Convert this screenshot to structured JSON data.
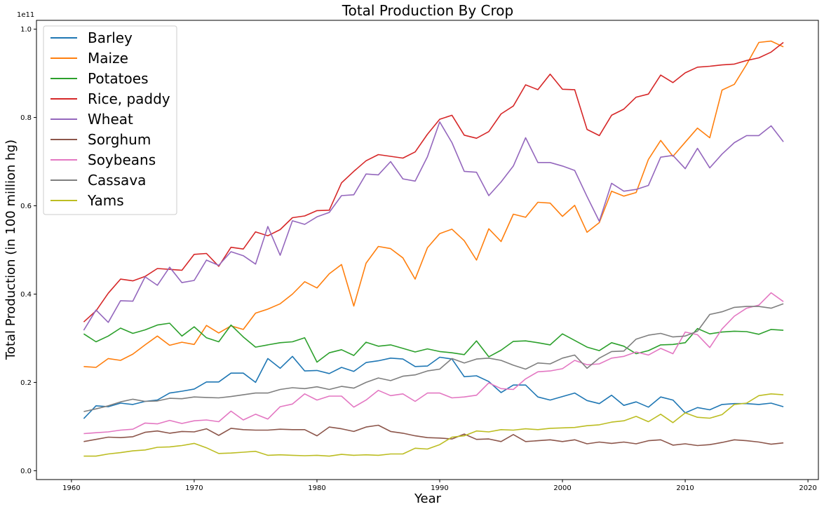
{
  "chart_data": {
    "type": "line",
    "title": "Total Production By Crop",
    "xlabel": "Year",
    "ylabel": "Total Production (in 100 million hg)",
    "y_offset_label": "1e11",
    "xlim": [
      1957.15,
      2020.85
    ],
    "ylim": [
      -0.02,
      1.02
    ],
    "y_unit_multiplier": 100000000000,
    "xticks": [
      1960,
      1970,
      1980,
      1990,
      2000,
      2010,
      2020
    ],
    "xtick_labels": [
      "1960",
      "1970",
      "1980",
      "1990",
      "2000",
      "2010",
      "2020"
    ],
    "yticks": [
      0.0,
      0.2,
      0.4,
      0.6,
      0.8,
      1.0
    ],
    "ytick_labels": [
      "0.0",
      "0.2",
      "0.4",
      "0.6",
      "0.8",
      "1.0"
    ],
    "grid": false,
    "legend_position": "upper-left",
    "x": [
      1961,
      1962,
      1963,
      1964,
      1965,
      1966,
      1967,
      1968,
      1969,
      1970,
      1971,
      1972,
      1973,
      1974,
      1975,
      1976,
      1977,
      1978,
      1979,
      1980,
      1981,
      1982,
      1983,
      1984,
      1985,
      1986,
      1987,
      1988,
      1989,
      1990,
      1991,
      1992,
      1993,
      1994,
      1995,
      1996,
      1997,
      1998,
      1999,
      2000,
      2001,
      2002,
      2003,
      2004,
      2005,
      2006,
      2007,
      2008,
      2009,
      2010,
      2011,
      2012,
      2013,
      2014,
      2015,
      2016,
      2017,
      2018
    ],
    "series": [
      {
        "name": "Barley",
        "color": "#1f77b4",
        "values": [
          0.118,
          0.147,
          0.145,
          0.153,
          0.15,
          0.157,
          0.16,
          0.176,
          0.18,
          0.185,
          0.201,
          0.201,
          0.221,
          0.221,
          0.2,
          0.254,
          0.232,
          0.259,
          0.226,
          0.227,
          0.22,
          0.234,
          0.225,
          0.245,
          0.249,
          0.255,
          0.253,
          0.236,
          0.237,
          0.257,
          0.253,
          0.213,
          0.215,
          0.202,
          0.177,
          0.194,
          0.194,
          0.167,
          0.16,
          0.168,
          0.176,
          0.159,
          0.152,
          0.171,
          0.148,
          0.156,
          0.144,
          0.167,
          0.16,
          0.131,
          0.143,
          0.138,
          0.15,
          0.152,
          0.152,
          0.15,
          0.153,
          0.145
        ]
      },
      {
        "name": "Maize",
        "color": "#ff7f0e",
        "values": [
          0.236,
          0.234,
          0.254,
          0.25,
          0.264,
          0.285,
          0.305,
          0.284,
          0.291,
          0.286,
          0.329,
          0.312,
          0.328,
          0.32,
          0.357,
          0.366,
          0.378,
          0.4,
          0.428,
          0.414,
          0.446,
          0.467,
          0.373,
          0.47,
          0.508,
          0.503,
          0.482,
          0.434,
          0.505,
          0.537,
          0.547,
          0.521,
          0.477,
          0.548,
          0.519,
          0.581,
          0.574,
          0.608,
          0.606,
          0.576,
          0.601,
          0.54,
          0.562,
          0.633,
          0.622,
          0.63,
          0.705,
          0.748,
          0.712,
          0.744,
          0.776,
          0.754,
          0.862,
          0.875,
          0.92,
          0.97,
          0.973,
          0.96
        ]
      },
      {
        "name": "Potatoes",
        "color": "#2ca02c",
        "values": [
          0.31,
          0.292,
          0.305,
          0.323,
          0.311,
          0.319,
          0.33,
          0.334,
          0.305,
          0.326,
          0.301,
          0.292,
          0.33,
          0.303,
          0.28,
          0.285,
          0.29,
          0.292,
          0.301,
          0.246,
          0.267,
          0.274,
          0.261,
          0.291,
          0.282,
          0.285,
          0.277,
          0.269,
          0.276,
          0.27,
          0.267,
          0.263,
          0.294,
          0.258,
          0.273,
          0.293,
          0.294,
          0.29,
          0.285,
          0.31,
          0.295,
          0.28,
          0.272,
          0.29,
          0.282,
          0.265,
          0.272,
          0.285,
          0.286,
          0.29,
          0.322,
          0.31,
          0.314,
          0.316,
          0.315,
          0.309,
          0.32,
          0.318
        ]
      },
      {
        "name": "Rice, paddy",
        "color": "#d62728",
        "values": [
          0.337,
          0.362,
          0.402,
          0.434,
          0.43,
          0.44,
          0.458,
          0.456,
          0.454,
          0.49,
          0.492,
          0.463,
          0.506,
          0.502,
          0.541,
          0.532,
          0.546,
          0.573,
          0.577,
          0.589,
          0.59,
          0.652,
          0.678,
          0.702,
          0.716,
          0.712,
          0.708,
          0.722,
          0.762,
          0.796,
          0.805,
          0.76,
          0.753,
          0.768,
          0.808,
          0.826,
          0.874,
          0.863,
          0.898,
          0.864,
          0.863,
          0.773,
          0.759,
          0.805,
          0.819,
          0.846,
          0.853,
          0.896,
          0.879,
          0.901,
          0.914,
          0.916,
          0.919,
          0.921,
          0.929,
          0.935,
          0.948,
          0.97
        ]
      },
      {
        "name": "Wheat",
        "color": "#9467bd",
        "values": [
          0.318,
          0.364,
          0.336,
          0.385,
          0.384,
          0.439,
          0.42,
          0.461,
          0.426,
          0.431,
          0.477,
          0.465,
          0.496,
          0.487,
          0.468,
          0.553,
          0.488,
          0.566,
          0.558,
          0.575,
          0.585,
          0.623,
          0.625,
          0.672,
          0.67,
          0.7,
          0.661,
          0.656,
          0.711,
          0.79,
          0.743,
          0.678,
          0.676,
          0.623,
          0.654,
          0.69,
          0.754,
          0.698,
          0.698,
          0.69,
          0.68,
          0.621,
          0.565,
          0.651,
          0.633,
          0.637,
          0.646,
          0.71,
          0.714,
          0.684,
          0.73,
          0.686,
          0.717,
          0.743,
          0.759,
          0.759,
          0.781,
          0.745
        ]
      },
      {
        "name": "Sorghum",
        "color": "#8c564b",
        "values": [
          0.066,
          0.071,
          0.076,
          0.075,
          0.077,
          0.087,
          0.09,
          0.085,
          0.089,
          0.088,
          0.095,
          0.08,
          0.096,
          0.093,
          0.092,
          0.092,
          0.094,
          0.093,
          0.093,
          0.079,
          0.099,
          0.095,
          0.089,
          0.099,
          0.103,
          0.089,
          0.085,
          0.079,
          0.075,
          0.074,
          0.072,
          0.083,
          0.071,
          0.072,
          0.066,
          0.082,
          0.066,
          0.068,
          0.07,
          0.066,
          0.07,
          0.061,
          0.065,
          0.062,
          0.065,
          0.061,
          0.068,
          0.07,
          0.058,
          0.061,
          0.057,
          0.059,
          0.064,
          0.07,
          0.068,
          0.065,
          0.06,
          0.063
        ]
      },
      {
        "name": "Soybeans",
        "color": "#e377c2",
        "values": [
          0.084,
          0.086,
          0.088,
          0.092,
          0.094,
          0.108,
          0.106,
          0.114,
          0.107,
          0.113,
          0.115,
          0.111,
          0.135,
          0.115,
          0.128,
          0.117,
          0.145,
          0.151,
          0.174,
          0.16,
          0.169,
          0.169,
          0.144,
          0.16,
          0.182,
          0.17,
          0.174,
          0.157,
          0.176,
          0.176,
          0.165,
          0.167,
          0.171,
          0.199,
          0.186,
          0.184,
          0.208,
          0.224,
          0.226,
          0.231,
          0.25,
          0.24,
          0.242,
          0.255,
          0.259,
          0.269,
          0.262,
          0.277,
          0.265,
          0.314,
          0.308,
          0.279,
          0.321,
          0.35,
          0.368,
          0.375,
          0.403,
          0.383
        ]
      },
      {
        "name": "Cassava",
        "color": "#7f7f7f",
        "values": [
          0.134,
          0.14,
          0.147,
          0.156,
          0.162,
          0.157,
          0.158,
          0.164,
          0.163,
          0.167,
          0.166,
          0.165,
          0.168,
          0.172,
          0.176,
          0.176,
          0.184,
          0.188,
          0.186,
          0.19,
          0.184,
          0.191,
          0.187,
          0.2,
          0.21,
          0.204,
          0.214,
          0.217,
          0.226,
          0.23,
          0.254,
          0.244,
          0.253,
          0.255,
          0.25,
          0.239,
          0.23,
          0.244,
          0.242,
          0.255,
          0.262,
          0.232,
          0.255,
          0.27,
          0.271,
          0.298,
          0.307,
          0.311,
          0.303,
          0.305,
          0.316,
          0.354,
          0.36,
          0.37,
          0.372,
          0.372,
          0.368,
          0.378
        ]
      },
      {
        "name": "Yams",
        "color": "#bcbd22",
        "values": [
          0.033,
          0.033,
          0.038,
          0.041,
          0.045,
          0.047,
          0.053,
          0.054,
          0.057,
          0.062,
          0.052,
          0.039,
          0.04,
          0.042,
          0.044,
          0.035,
          0.036,
          0.035,
          0.034,
          0.035,
          0.033,
          0.037,
          0.035,
          0.036,
          0.035,
          0.038,
          0.038,
          0.051,
          0.049,
          0.059,
          0.076,
          0.079,
          0.09,
          0.088,
          0.093,
          0.092,
          0.095,
          0.093,
          0.096,
          0.097,
          0.098,
          0.102,
          0.104,
          0.11,
          0.113,
          0.123,
          0.111,
          0.128,
          0.109,
          0.131,
          0.121,
          0.119,
          0.127,
          0.15,
          0.153,
          0.17,
          0.174,
          0.172
        ]
      }
    ]
  }
}
